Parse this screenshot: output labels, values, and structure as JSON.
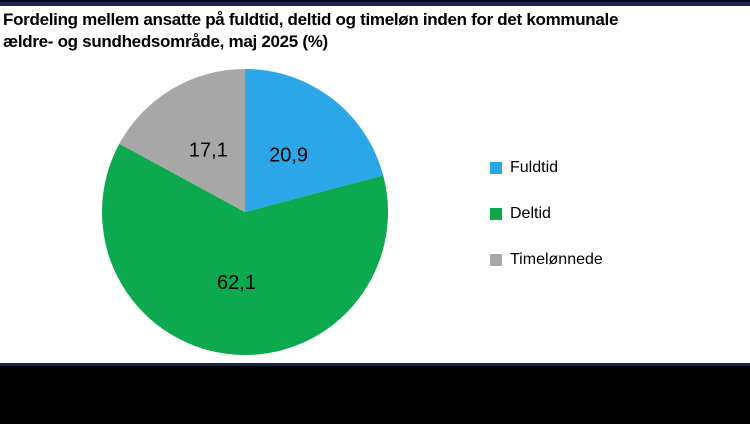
{
  "frame": {
    "background": "#FFFFFF",
    "top_border_color": "#1C2454",
    "bottom_line_color": "#1C2454",
    "bottom_band_color": "#000000"
  },
  "header": {
    "title_lines": [
      "Fordeling mellem ansatte på fuldtid, deltid og timeløn inden for det kommunale",
      "ældre- og sundhedsområde, maj 2025 (%)"
    ]
  },
  "chart_data": {
    "type": "pie",
    "title": "Fordeling mellem ansatte på fuldtid, deltid og timeløn inden for det kommunale ældre- og sundhedsområde, maj 2025 (%)",
    "unit": "%",
    "start_angle_deg": 0,
    "direction": "clockwise",
    "legend_position": "right",
    "label_radius_fraction": 0.5,
    "slices": [
      {
        "label": "Fuldtid",
        "value": 20.9,
        "display_value": "20,9",
        "color": "#2BA7E9"
      },
      {
        "label": "Deltid",
        "value": 62.1,
        "display_value": "62,1",
        "color": "#0CA94F"
      },
      {
        "label": "Timelønnede",
        "value": 17.1,
        "display_value": "17,1",
        "color": "#A7A7A7"
      }
    ]
  }
}
